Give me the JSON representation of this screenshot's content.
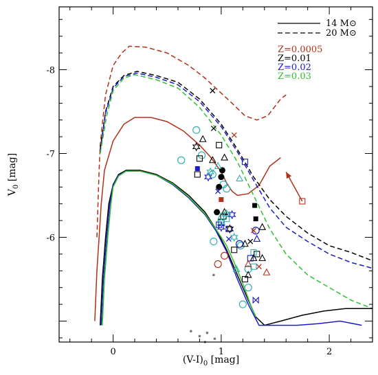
{
  "chart_data": {
    "type": "scatter",
    "xlabel": "(V-I)0 [mag]",
    "ylabel": "V0 [mag]",
    "xlim": [
      -0.5,
      2.4
    ],
    "ylim": [
      -4.75,
      -8.75
    ],
    "y_inverted": true,
    "x_ticks": [
      {
        "value": 0,
        "label": "0"
      },
      {
        "value": 1,
        "label": "1"
      },
      {
        "value": 2,
        "label": "2"
      }
    ],
    "y_ticks": [
      {
        "value": -6,
        "label": "-6"
      },
      {
        "value": -7,
        "label": "-7"
      },
      {
        "value": -8,
        "label": "-8"
      }
    ],
    "grid": false,
    "legend": {
      "placement": "top-right",
      "mass_entries": [
        {
          "label": "14 M⊙",
          "dash": "solid"
        },
        {
          "label": "20 M⊙",
          "dash": "dashed"
        }
      ],
      "metallicity_entries": [
        {
          "label": "Z=0.0005",
          "color": "#b03018"
        },
        {
          "label": "Z=0.01",
          "color": "#000000"
        },
        {
          "label": "Z=0.02",
          "color": "#1a1ac8"
        },
        {
          "label": "Z=0.03",
          "color": "#30c030"
        }
      ]
    },
    "tracks": [
      {
        "metallicity": "Z=0.0005",
        "mass": "20",
        "dash": "dashed",
        "color": "#b03018",
        "points": [
          [
            -0.15,
            -6.0
          ],
          [
            -0.13,
            -6.8
          ],
          [
            -0.12,
            -7.1
          ],
          [
            -0.1,
            -7.35
          ],
          [
            -0.07,
            -7.7
          ],
          [
            0.0,
            -8.05
          ],
          [
            0.08,
            -8.2
          ],
          [
            0.15,
            -8.28
          ],
          [
            0.3,
            -8.27
          ],
          [
            0.5,
            -8.2
          ],
          [
            0.7,
            -8.05
          ],
          [
            0.85,
            -7.9
          ],
          [
            1.0,
            -7.72
          ],
          [
            1.1,
            -7.6
          ],
          [
            1.22,
            -7.45
          ],
          [
            1.33,
            -7.4
          ],
          [
            1.43,
            -7.45
          ],
          [
            1.55,
            -7.65
          ],
          [
            1.6,
            -7.7
          ]
        ]
      },
      {
        "metallicity": "Z=0.0005",
        "mass": "14",
        "dash": "solid",
        "color": "#b03018",
        "points": [
          [
            -0.17,
            -5.0
          ],
          [
            -0.15,
            -5.6
          ],
          [
            -0.13,
            -6.0
          ],
          [
            -0.11,
            -6.4
          ],
          [
            -0.08,
            -6.8
          ],
          [
            0.0,
            -7.15
          ],
          [
            0.1,
            -7.35
          ],
          [
            0.2,
            -7.43
          ],
          [
            0.35,
            -7.43
          ],
          [
            0.5,
            -7.38
          ],
          [
            0.65,
            -7.27
          ],
          [
            0.8,
            -7.1
          ],
          [
            0.9,
            -6.96
          ],
          [
            1.0,
            -6.78
          ],
          [
            1.05,
            -6.65
          ],
          [
            1.1,
            -6.55
          ],
          [
            1.15,
            -6.5
          ],
          [
            1.25,
            -6.52
          ],
          [
            1.35,
            -6.62
          ],
          [
            1.45,
            -6.85
          ],
          [
            1.55,
            -6.95
          ]
        ]
      },
      {
        "metallicity": "Z=0.01",
        "mass": "20",
        "dash": "dashed",
        "color": "#000000",
        "points": [
          [
            -0.12,
            -7.05
          ],
          [
            -0.07,
            -7.5
          ],
          [
            0.0,
            -7.8
          ],
          [
            0.1,
            -7.93
          ],
          [
            0.22,
            -7.98
          ],
          [
            0.4,
            -7.93
          ],
          [
            0.6,
            -7.85
          ],
          [
            0.8,
            -7.65
          ],
          [
            1.0,
            -7.35
          ],
          [
            1.15,
            -7.05
          ],
          [
            1.3,
            -6.72
          ],
          [
            1.45,
            -6.45
          ],
          [
            1.6,
            -6.25
          ],
          [
            1.8,
            -6.05
          ],
          [
            2.0,
            -5.9
          ],
          [
            2.2,
            -5.82
          ],
          [
            2.4,
            -5.72
          ]
        ]
      },
      {
        "metallicity": "Z=0.02",
        "mass": "20",
        "dash": "dashed",
        "color": "#1a1ac8",
        "points": [
          [
            -0.12,
            -7.02
          ],
          [
            -0.07,
            -7.48
          ],
          [
            0.0,
            -7.78
          ],
          [
            0.1,
            -7.92
          ],
          [
            0.22,
            -7.96
          ],
          [
            0.4,
            -7.91
          ],
          [
            0.6,
            -7.82
          ],
          [
            0.8,
            -7.62
          ],
          [
            1.0,
            -7.32
          ],
          [
            1.15,
            -7.02
          ],
          [
            1.3,
            -6.68
          ],
          [
            1.45,
            -6.35
          ],
          [
            1.6,
            -6.12
          ],
          [
            1.8,
            -5.95
          ],
          [
            2.0,
            -5.8
          ],
          [
            2.2,
            -5.7
          ],
          [
            2.4,
            -5.63
          ]
        ]
      },
      {
        "metallicity": "Z=0.03",
        "mass": "20",
        "dash": "dashed",
        "color": "#30c030",
        "points": [
          [
            -0.12,
            -7.0
          ],
          [
            -0.06,
            -7.45
          ],
          [
            0.0,
            -7.75
          ],
          [
            0.1,
            -7.9
          ],
          [
            0.2,
            -7.94
          ],
          [
            0.4,
            -7.88
          ],
          [
            0.6,
            -7.78
          ],
          [
            0.8,
            -7.55
          ],
          [
            1.0,
            -7.22
          ],
          [
            1.15,
            -6.9
          ],
          [
            1.3,
            -6.5
          ],
          [
            1.45,
            -6.1
          ],
          [
            1.6,
            -5.8
          ],
          [
            1.8,
            -5.55
          ],
          [
            2.0,
            -5.4
          ],
          [
            2.2,
            -5.25
          ],
          [
            2.4,
            -5.15
          ]
        ]
      },
      {
        "metallicity": "Z=0.01",
        "mass": "14",
        "dash": "solid",
        "color": "#000000",
        "points": [
          [
            -0.12,
            -4.95
          ],
          [
            -0.1,
            -5.5
          ],
          [
            -0.07,
            -6.0
          ],
          [
            -0.04,
            -6.4
          ],
          [
            0.0,
            -6.63
          ],
          [
            0.05,
            -6.75
          ],
          [
            0.12,
            -6.8
          ],
          [
            0.25,
            -6.8
          ],
          [
            0.4,
            -6.75
          ],
          [
            0.55,
            -6.65
          ],
          [
            0.7,
            -6.5
          ],
          [
            0.85,
            -6.3
          ],
          [
            0.95,
            -6.1
          ],
          [
            1.05,
            -5.85
          ],
          [
            1.15,
            -5.55
          ],
          [
            1.25,
            -5.25
          ],
          [
            1.32,
            -5.05
          ],
          [
            1.4,
            -4.95
          ],
          [
            1.55,
            -5.0
          ],
          [
            1.75,
            -5.07
          ],
          [
            1.95,
            -5.12
          ],
          [
            2.15,
            -5.15
          ],
          [
            2.4,
            -5.15
          ]
        ]
      },
      {
        "metallicity": "Z=0.02",
        "mass": "14",
        "dash": "solid",
        "color": "#1a1ac8",
        "points": [
          [
            -0.11,
            -4.95
          ],
          [
            -0.09,
            -5.5
          ],
          [
            -0.06,
            -6.0
          ],
          [
            -0.03,
            -6.4
          ],
          [
            0.0,
            -6.62
          ],
          [
            0.05,
            -6.74
          ],
          [
            0.12,
            -6.79
          ],
          [
            0.25,
            -6.79
          ],
          [
            0.4,
            -6.74
          ],
          [
            0.55,
            -6.63
          ],
          [
            0.7,
            -6.47
          ],
          [
            0.85,
            -6.27
          ],
          [
            0.95,
            -6.08
          ],
          [
            1.05,
            -5.83
          ],
          [
            1.15,
            -5.5
          ],
          [
            1.25,
            -5.2
          ],
          [
            1.35,
            -4.95
          ],
          [
            1.5,
            -4.95
          ],
          [
            1.7,
            -4.95
          ],
          [
            1.9,
            -4.97
          ],
          [
            2.1,
            -5.0
          ],
          [
            2.3,
            -4.95
          ]
        ]
      },
      {
        "metallicity": "Z=0.03",
        "mass": "14",
        "dash": "solid",
        "color": "#30c030",
        "points": [
          [
            -0.1,
            -4.95
          ],
          [
            -0.08,
            -5.5
          ],
          [
            -0.05,
            -6.0
          ],
          [
            -0.02,
            -6.4
          ],
          [
            0.0,
            -6.6
          ],
          [
            0.05,
            -6.73
          ],
          [
            0.12,
            -6.79
          ],
          [
            0.25,
            -6.79
          ],
          [
            0.4,
            -6.74
          ],
          [
            0.55,
            -6.64
          ],
          [
            0.7,
            -6.48
          ],
          [
            0.85,
            -6.28
          ],
          [
            0.95,
            -6.1
          ],
          [
            1.05,
            -5.9
          ],
          [
            1.12,
            -5.7
          ],
          [
            1.2,
            -5.45
          ],
          [
            1.27,
            -5.2
          ],
          [
            1.32,
            -5.05
          ]
        ]
      }
    ],
    "series": [
      {
        "marker": "circle-open",
        "color": "#30b0b0",
        "points": [
          [
            0.77,
            -7.28
          ],
          [
            0.63,
            -6.92
          ],
          [
            0.82,
            -6.98
          ],
          [
            0.92,
            -6.75
          ],
          [
            1.02,
            -6.63
          ],
          [
            1.05,
            -6.58
          ],
          [
            0.93,
            -5.95
          ],
          [
            1.18,
            -5.9
          ],
          [
            1.25,
            -5.62
          ],
          [
            1.2,
            -5.2
          ],
          [
            1.25,
            -5.4
          ]
        ]
      },
      {
        "marker": "circle-open",
        "color": "#1a1ac8",
        "points": [
          [
            1.17,
            -5.92
          ],
          [
            1.32,
            -6.08
          ]
        ]
      },
      {
        "marker": "circle-open",
        "color": "#b03018",
        "points": [
          [
            0.97,
            -5.68
          ],
          [
            1.03,
            -5.78
          ]
        ]
      },
      {
        "marker": "circle-filled",
        "color": "#000000",
        "points": [
          [
            0.96,
            -6.3
          ],
          [
            1.01,
            -6.8
          ],
          [
            1.0,
            -6.72
          ],
          [
            0.98,
            -6.6
          ]
        ]
      },
      {
        "marker": "square-open",
        "color": "#000000",
        "points": [
          [
            0.98,
            -7.1
          ],
          [
            0.8,
            -6.94
          ],
          [
            0.78,
            -6.75
          ],
          [
            1.02,
            -6.25
          ],
          [
            1.0,
            -6.18
          ],
          [
            1.12,
            -5.85
          ],
          [
            1.22,
            -5.5
          ],
          [
            1.33,
            -5.8
          ]
        ]
      },
      {
        "marker": "square-open",
        "color": "#30b0b0",
        "points": [
          [
            1.05,
            -6.22
          ],
          [
            1.3,
            -5.65
          ],
          [
            1.3,
            -5.82
          ]
        ]
      },
      {
        "marker": "square-open",
        "color": "#1a1ac8",
        "points": [
          [
            0.98,
            -6.15
          ],
          [
            1.07,
            -6.1
          ],
          [
            1.22,
            -6.9
          ],
          [
            1.27,
            -5.75
          ]
        ]
      },
      {
        "marker": "square-open",
        "color": "#b03018",
        "points": [
          [
            1.75,
            -6.43
          ]
        ]
      },
      {
        "marker": "square-filled",
        "color": "#000000",
        "points": [
          [
            1.31,
            -6.38
          ],
          [
            1.32,
            -6.22
          ]
        ]
      },
      {
        "marker": "square-filled",
        "color": "#1a1ac8",
        "points": [
          [
            0.78,
            -6.82
          ]
        ]
      },
      {
        "marker": "square-filled",
        "color": "#b03018",
        "points": [
          [
            1.0,
            -6.45
          ]
        ]
      },
      {
        "marker": "triangle-open",
        "color": "#000000",
        "points": [
          [
            0.83,
            -7.17
          ],
          [
            0.92,
            -6.92
          ],
          [
            1.03,
            -6.95
          ],
          [
            1.03,
            -6.3
          ],
          [
            1.22,
            -5.92
          ],
          [
            1.3,
            -5.75
          ],
          [
            1.38,
            -5.75
          ],
          [
            1.25,
            -5.55
          ],
          [
            1.38,
            -6.12
          ]
        ]
      },
      {
        "marker": "triangle-open",
        "color": "#30b0b0",
        "points": [
          [
            0.97,
            -6.85
          ],
          [
            1.17,
            -6.7
          ],
          [
            1.0,
            -6.25
          ],
          [
            1.14,
            -5.62
          ]
        ]
      },
      {
        "marker": "triangle-open",
        "color": "#1a1ac8",
        "points": [
          [
            1.33,
            -5.98
          ]
        ]
      },
      {
        "marker": "triangle-open",
        "color": "#b03018",
        "points": [
          [
            1.42,
            -5.58
          ],
          [
            1.25,
            -5.68
          ]
        ]
      },
      {
        "marker": "star-open",
        "color": "#000000",
        "points": [
          [
            0.77,
            -7.08
          ],
          [
            1.08,
            -6.1
          ]
        ]
      },
      {
        "marker": "star-open",
        "color": "#1a1ac8",
        "points": [
          [
            1.1,
            -6.27
          ],
          [
            0.88,
            -6.72
          ],
          [
            1.0,
            -6.12
          ]
        ]
      },
      {
        "marker": "star-open",
        "color": "#30b0b0",
        "points": [
          [
            0.9,
            -6.78
          ],
          [
            1.0,
            -6.18
          ],
          [
            1.05,
            -6.28
          ],
          [
            1.12,
            -6.0
          ]
        ]
      },
      {
        "marker": "cross",
        "color": "#000000",
        "points": [
          [
            0.92,
            -7.75
          ],
          [
            0.93,
            -7.3
          ],
          [
            1.27,
            -5.95
          ]
        ]
      },
      {
        "marker": "cross",
        "color": "#1a1ac8",
        "points": [
          [
            0.97,
            -6.55
          ],
          [
            1.07,
            -5.98
          ]
        ]
      },
      {
        "marker": "cross",
        "color": "#b03018",
        "points": [
          [
            1.12,
            -7.22
          ],
          [
            1.35,
            -5.65
          ],
          [
            1.3,
            -6.08
          ]
        ]
      },
      {
        "marker": "bowtie",
        "color": "#1a1ac8",
        "points": [
          [
            1.32,
            -5.25
          ]
        ]
      },
      {
        "marker": "dot",
        "color": "#777777",
        "points": [
          [
            0.93,
            -5.55
          ],
          [
            0.72,
            -4.88
          ],
          [
            0.8,
            -4.82
          ],
          [
            0.87,
            -4.86
          ],
          [
            0.94,
            -4.79
          ],
          [
            0.85,
            -4.75
          ]
        ]
      }
    ],
    "arrow": {
      "from": [
        1.75,
        -6.43
      ],
      "to": [
        1.6,
        -6.78
      ],
      "color": "#b03018"
    }
  }
}
